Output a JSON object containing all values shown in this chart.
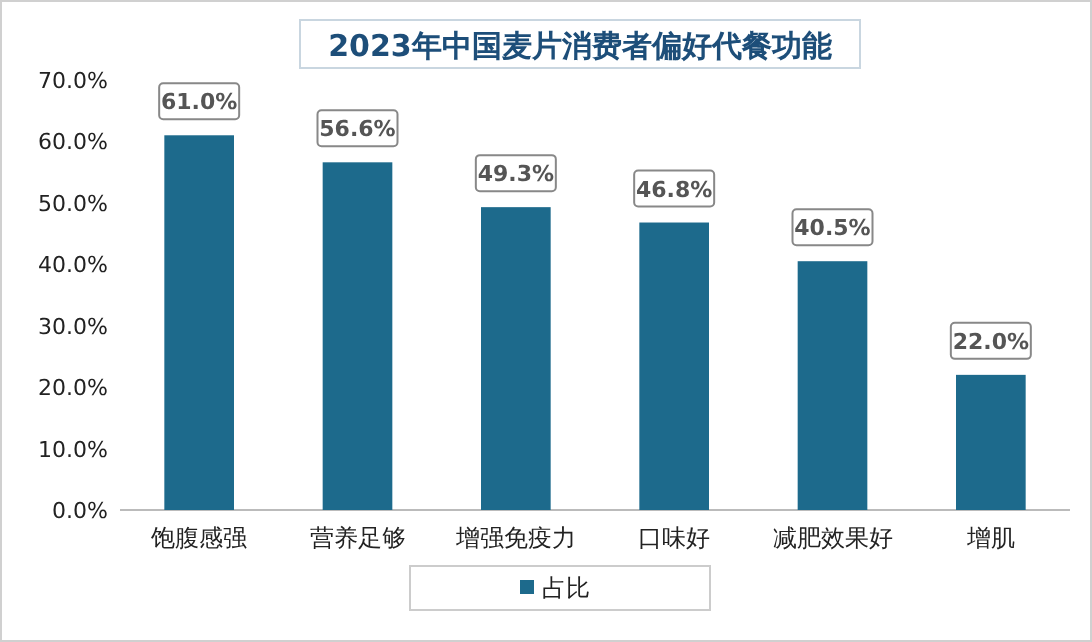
{
  "chart_data": {
    "type": "bar",
    "title": "2023年中国麦片消费者偏好代餐功能",
    "categories": [
      "饱腹感强",
      "营养足够",
      "增强免疫力",
      "口味好",
      "减肥效果好",
      "增肌"
    ],
    "series": [
      {
        "name": "占比",
        "color": "#1d6a8c",
        "values": [
          61.0,
          56.6,
          49.3,
          46.8,
          40.5,
          22.0
        ],
        "value_labels": [
          "61.0%",
          "56.6%",
          "49.3%",
          "46.8%",
          "40.5%",
          "22.0%"
        ]
      }
    ],
    "ylim": [
      0,
      70
    ],
    "yticks": [
      {
        "value": 0,
        "label": "0.0%"
      },
      {
        "value": 10,
        "label": "10.0%"
      },
      {
        "value": 20,
        "label": "20.0%"
      },
      {
        "value": 30,
        "label": "30.0%"
      },
      {
        "value": 40,
        "label": "40.0%"
      },
      {
        "value": 50,
        "label": "50.0%"
      },
      {
        "value": 60,
        "label": "60.0%"
      },
      {
        "value": 70,
        "label": "70.0%"
      }
    ],
    "legend": "bottom",
    "grid": false
  }
}
